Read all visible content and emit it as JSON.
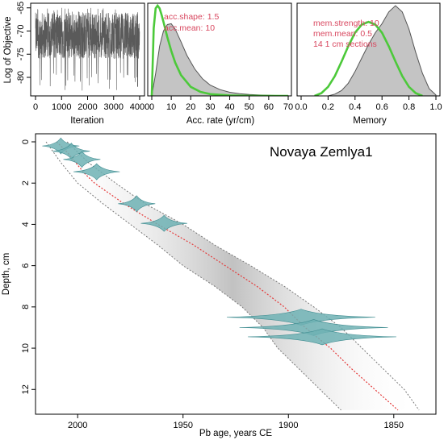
{
  "chart_data": [
    {
      "type": "line",
      "panel": "log-objective",
      "xlabel": "Iteration",
      "ylabel": "Log of Objective",
      "xlim": [
        0,
        4000
      ],
      "ylim": [
        -84,
        -64
      ],
      "xticks": [
        "0",
        "1000",
        "2000",
        "3000",
        "4000"
      ],
      "yticks": [
        "-65",
        "-70",
        "-75",
        "-80"
      ],
      "trace_color": "#5a5a5a",
      "trace_band": {
        "typical_range": [
          -76,
          -66
        ],
        "min": -83,
        "max": -65
      }
    },
    {
      "type": "area",
      "panel": "accumulation-rate",
      "xlabel": "Acc. rate (yr/cm)",
      "xlim": [
        0,
        70
      ],
      "xticks": [
        "0",
        "10",
        "20",
        "30",
        "40",
        "50",
        "60",
        "70"
      ],
      "annotations": [
        "acc.shape:  1.5",
        "acc.mean:  10"
      ],
      "posterior": {
        "x": [
          0,
          2,
          4,
          6,
          8,
          10,
          12,
          15,
          18,
          22,
          26,
          30,
          35,
          40,
          45,
          50,
          55,
          60,
          65,
          70
        ],
        "y": [
          0.0,
          0.25,
          0.55,
          0.72,
          0.79,
          0.8,
          0.74,
          0.6,
          0.45,
          0.3,
          0.19,
          0.12,
          0.07,
          0.04,
          0.025,
          0.015,
          0.01,
          0.006,
          0.004,
          0.002
        ]
      },
      "prior": {
        "x": [
          0,
          1,
          2,
          3,
          4,
          5,
          6,
          8,
          10,
          12,
          15,
          20,
          25,
          30,
          40,
          50,
          70
        ],
        "y": [
          0.0,
          0.75,
          0.97,
          1.0,
          0.97,
          0.9,
          0.82,
          0.65,
          0.5,
          0.37,
          0.23,
          0.1,
          0.045,
          0.02,
          0.005,
          0.001,
          0.0
        ]
      },
      "posterior_color": "#c4c4c4",
      "prior_color": "#4cc93a"
    },
    {
      "type": "area",
      "panel": "memory",
      "xlabel": "Memory",
      "xlim": [
        0,
        1
      ],
      "xticks": [
        "0.0",
        "0.2",
        "0.4",
        "0.6",
        "0.8",
        "1.0"
      ],
      "annotations": [
        "mem.strength:  10",
        "mem.mean:  0.5",
        "14  1 cm sections"
      ],
      "posterior": {
        "x": [
          0.2,
          0.25,
          0.3,
          0.35,
          0.4,
          0.45,
          0.5,
          0.55,
          0.6,
          0.65,
          0.7,
          0.75,
          0.8,
          0.85,
          0.9,
          0.95,
          1.0
        ],
        "y": [
          0.0,
          0.02,
          0.06,
          0.14,
          0.27,
          0.42,
          0.57,
          0.7,
          0.8,
          0.93,
          1.0,
          0.93,
          0.74,
          0.48,
          0.25,
          0.08,
          0.01
        ]
      },
      "prior": {
        "x": [
          0.1,
          0.15,
          0.2,
          0.25,
          0.3,
          0.35,
          0.4,
          0.45,
          0.5,
          0.55,
          0.6,
          0.65,
          0.7,
          0.75,
          0.8,
          0.85,
          0.9
        ],
        "y": [
          0.0,
          0.03,
          0.1,
          0.22,
          0.38,
          0.55,
          0.7,
          0.79,
          0.82,
          0.79,
          0.7,
          0.55,
          0.38,
          0.22,
          0.1,
          0.03,
          0.0
        ]
      },
      "posterior_color": "#c4c4c4",
      "prior_color": "#4cc93a"
    },
    {
      "type": "scatter",
      "panel": "age-depth",
      "title": "Novaya Zemlya1",
      "xlabel": "Pb age, years CE",
      "ylabel": "Depth, cm",
      "xlim": [
        2020,
        1830
      ],
      "ylim": [
        0,
        13.2
      ],
      "xticks": [
        "2000",
        "1950",
        "1900",
        "1850"
      ],
      "xtick_values": [
        2000,
        1950,
        1900,
        1850
      ],
      "yticks": [
        "0",
        "2",
        "4",
        "6",
        "8",
        "10",
        "12"
      ],
      "ytick_values": [
        0,
        2,
        4,
        6,
        8,
        10,
        12
      ],
      "median_age": {
        "depth": [
          0,
          0.5,
          1,
          1.5,
          2,
          3,
          4,
          5,
          6,
          7,
          8,
          9,
          10,
          11,
          12,
          13
        ],
        "age": [
          2010,
          2005,
          2001,
          1997,
          1992,
          1978,
          1962,
          1945,
          1930,
          1915,
          1902,
          1892,
          1880,
          1870,
          1859,
          1848
        ]
      },
      "envelope_young": {
        "depth": [
          0,
          1,
          2,
          3,
          4,
          5,
          6,
          7,
          8,
          9,
          10,
          11,
          12,
          13
        ],
        "age": [
          2015,
          2008,
          2000,
          1988,
          1975,
          1962,
          1950,
          1935,
          1922,
          1912,
          1905,
          1895,
          1885,
          1875
        ]
      },
      "envelope_old": {
        "depth": [
          0,
          1,
          2,
          3,
          4,
          5,
          6,
          7,
          8,
          9,
          10,
          11,
          12,
          13
        ],
        "age": [
          2005,
          1995,
          1982,
          1968,
          1950,
          1935,
          1918,
          1902,
          1888,
          1875,
          1865,
          1855,
          1845,
          1838
        ]
      },
      "dates": [
        {
          "depth": 0.2,
          "age": 2008,
          "spread": 4
        },
        {
          "depth": 0.45,
          "age": 2003,
          "spread": 4
        },
        {
          "depth": 0.85,
          "age": 1998,
          "spread": 4
        },
        {
          "depth": 1.45,
          "age": 1991,
          "spread": 5
        },
        {
          "depth": 3.0,
          "age": 1972,
          "spread": 4
        },
        {
          "depth": 3.95,
          "age": 1959,
          "spread": 5
        },
        {
          "depth": 8.5,
          "age": 1894,
          "spread": 16
        },
        {
          "depth": 9.0,
          "age": 1888,
          "spread": 16
        },
        {
          "depth": 9.45,
          "age": 1884,
          "spread": 16
        }
      ],
      "median_color": "#e43a3a",
      "date_color": "#6fb1b4",
      "envelope_color": "#777777"
    }
  ]
}
